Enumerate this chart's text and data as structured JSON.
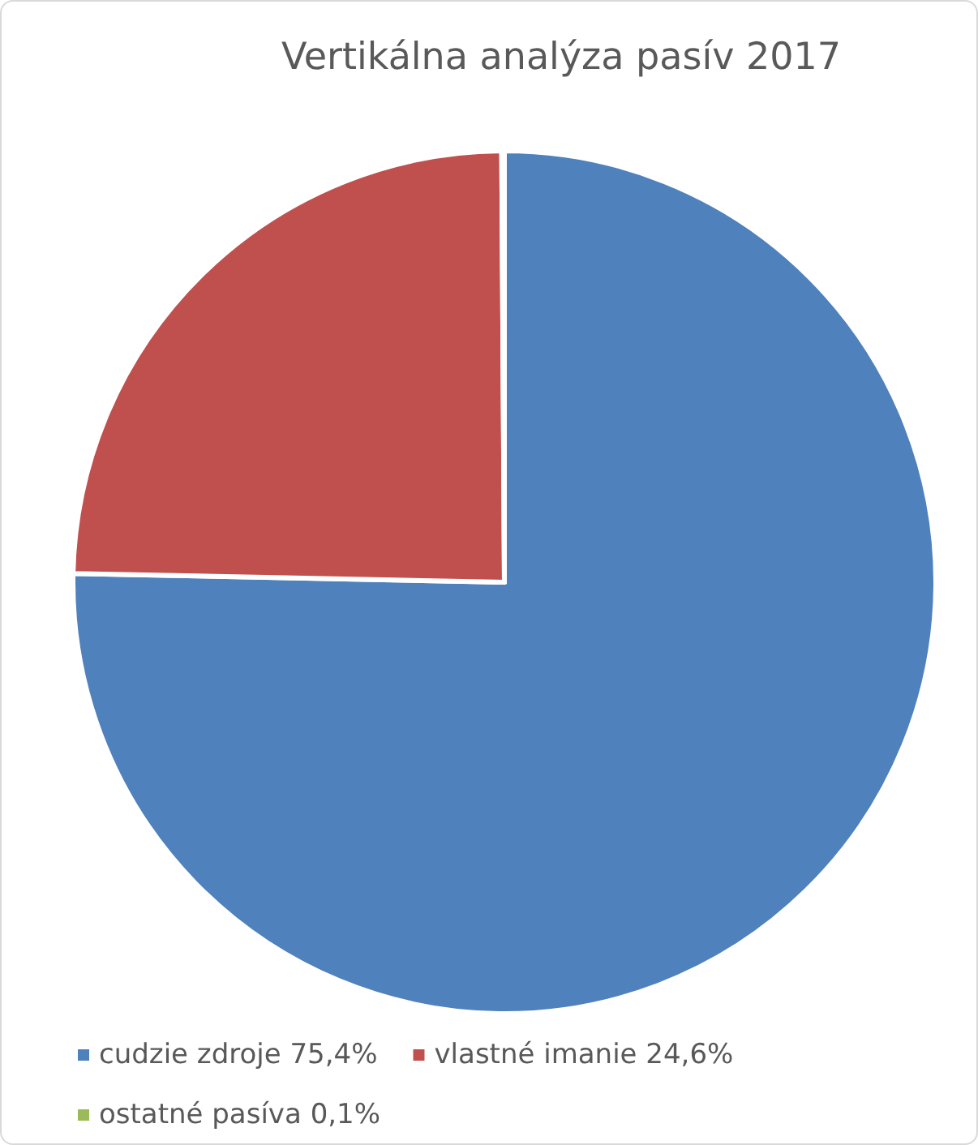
{
  "chart_data": {
    "type": "pie",
    "title": "Vertikálna analýza pasív 2017",
    "categories": [
      "cudzie zdroje 75,4%",
      "vlastné imanie 24,6%",
      "ostatné pasíva 0,1%"
    ],
    "values": [
      75.4,
      24.6,
      0.1
    ],
    "colors": [
      "#4f81bd",
      "#c0504d",
      "#9bbb59"
    ],
    "legend": "bottom"
  }
}
